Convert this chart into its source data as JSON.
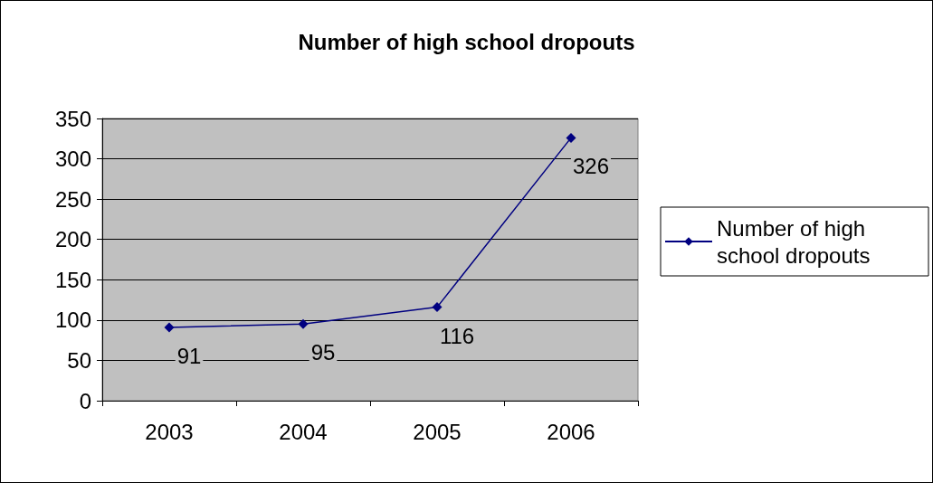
{
  "chart_data": {
    "type": "line",
    "title": "Number of high school dropouts",
    "categories": [
      "2003",
      "2004",
      "2005",
      "2006"
    ],
    "series": [
      {
        "name": "Number of high school dropouts",
        "color": "#000080",
        "values": [
          91,
          95,
          116,
          326
        ]
      }
    ],
    "ylim": [
      0,
      350
    ],
    "yticks": [
      0,
      50,
      100,
      150,
      200,
      250,
      300,
      350
    ],
    "grid": "y",
    "legend": "right",
    "marker": "diamond",
    "data_labels": true
  }
}
